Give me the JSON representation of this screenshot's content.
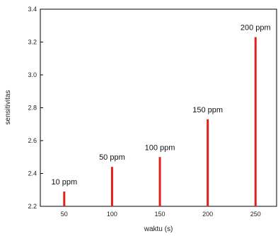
{
  "chart_data": {
    "type": "bar",
    "title": "",
    "xlabel": "waktu (s)",
    "ylabel": "sensitivitas",
    "categories": [
      50,
      100,
      150,
      200,
      250
    ],
    "x_ticks": [
      50,
      100,
      150,
      200,
      250
    ],
    "xlim": [
      25,
      272
    ],
    "ylim": [
      2.2,
      3.4
    ],
    "y_ticks": [
      "2.2",
      "2.4",
      "2.6",
      "2.8",
      "3.0",
      "3.2",
      "3.4"
    ],
    "series": [
      {
        "values": [
          2.29,
          2.44,
          2.5,
          2.73,
          3.23
        ],
        "labels": [
          "10 ppm",
          "50 ppm",
          "100 ppm",
          "150 ppm",
          "200 ppm"
        ]
      }
    ],
    "bar_color": "#e0201c",
    "grid": false,
    "legend": "none"
  }
}
